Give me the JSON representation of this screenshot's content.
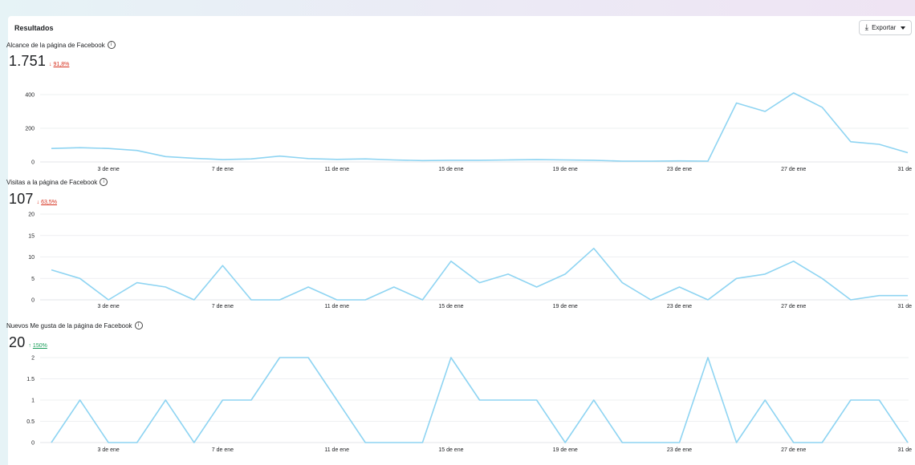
{
  "panel": {
    "title": "Resultados",
    "export_label": "Exportar",
    "export_icon": "download-icon"
  },
  "metrics": [
    {
      "title": "Alcance de la página de Facebook",
      "value": "1.751",
      "delta": "91,8%",
      "delta_direction": "down"
    },
    {
      "title": "Visitas a la página de Facebook",
      "value": "107",
      "delta": "63,5%",
      "delta_direction": "down"
    },
    {
      "title": "Nuevos Me gusta de la página de Facebook",
      "value": "20",
      "delta": "150%",
      "delta_direction": "up"
    }
  ],
  "colors": {
    "line": "#8ed4f2",
    "down": "#d6311f",
    "up": "#1a9e5a",
    "grid": "#e9ebee"
  },
  "chart_data": [
    {
      "type": "line",
      "title": "Alcance de la página de Facebook",
      "x_ticks": [
        "3 de ene",
        "7 de ene",
        "11 de ene",
        "15 de ene",
        "19 de ene",
        "23 de ene",
        "27 de ene",
        "31 de"
      ],
      "y_ticks": [
        "0",
        "200",
        "400"
      ],
      "ylim": [
        0,
        400
      ],
      "series": [
        {
          "values": [
            80,
            85,
            80,
            68,
            32,
            22,
            14,
            18,
            35,
            20,
            15,
            18,
            12,
            8,
            10,
            10,
            12,
            14,
            12,
            10,
            5,
            5,
            6,
            5,
            350,
            300,
            410,
            325,
            120,
            105,
            55
          ]
        }
      ]
    },
    {
      "type": "line",
      "title": "Visitas a la página de Facebook",
      "x_ticks": [
        "3 de ene",
        "7 de ene",
        "11 de ene",
        "15 de ene",
        "19 de ene",
        "23 de ene",
        "27 de ene",
        "31 de"
      ],
      "y_ticks": [
        "0",
        "5",
        "10",
        "15",
        "20"
      ],
      "ylim": [
        0,
        20
      ],
      "series": [
        {
          "values": [
            7,
            5,
            0,
            4,
            3,
            0,
            8,
            0,
            0,
            3,
            0,
            0,
            3,
            0,
            9,
            4,
            6,
            3,
            6,
            12,
            4,
            0,
            3,
            0,
            5,
            6,
            9,
            5,
            0,
            1,
            1
          ]
        }
      ]
    },
    {
      "type": "line",
      "title": "Nuevos Me gusta de la página de Facebook",
      "x_ticks": [
        "3 de ene",
        "7 de ene",
        "11 de ene",
        "15 de ene",
        "19 de ene",
        "23 de ene",
        "27 de ene",
        "31 de"
      ],
      "y_ticks": [
        "0",
        "0.5",
        "1",
        "1.5",
        "2"
      ],
      "ylim": [
        0,
        2
      ],
      "series": [
        {
          "values": [
            0,
            1,
            0,
            0,
            1,
            0,
            1,
            1,
            2,
            2,
            1,
            0,
            0,
            0,
            2,
            1,
            1,
            1,
            0,
            1,
            0,
            0,
            0,
            2,
            0,
            1,
            0,
            0,
            1,
            1,
            0
          ]
        }
      ]
    }
  ]
}
